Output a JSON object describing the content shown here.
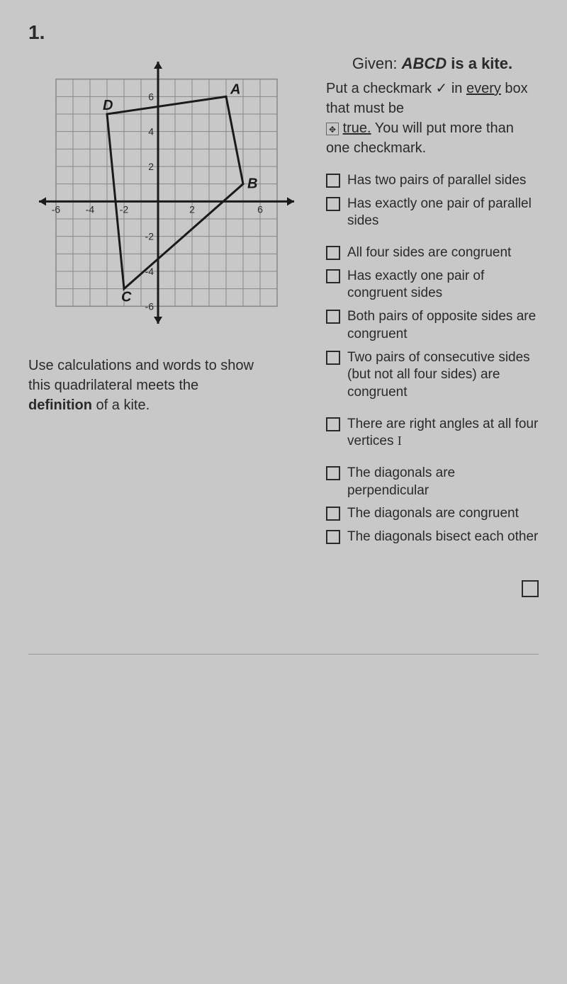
{
  "problem": {
    "number": "1.",
    "given_label": "Given:",
    "given_statement": "ABCD",
    "given_suffix": " is a kite.",
    "instruction_line1_a": "Put a checkmark ✓ in ",
    "instruction_line1_b": "every",
    "instruction_line1_c": " box that must be",
    "instruction_line2_a": "true.",
    "instruction_line2_b": "  You will put more than one checkmark."
  },
  "checkboxes": {
    "group1": [
      "Has two pairs of parallel sides",
      "Has exactly one pair of parallel sides"
    ],
    "group2": [
      "All four sides are congruent",
      "Has exactly one pair of congruent sides",
      "Both pairs of opposite sides are congruent",
      "Two pairs of consecutive sides",
      "(but not all four sides) are congruent"
    ],
    "group3": [
      "There are right angles at all four vertices"
    ],
    "group4": [
      "The diagonals are perpendicular",
      "The diagonals are congruent",
      "The diagonals bisect each other"
    ]
  },
  "graph": {
    "xmin": -7,
    "xmax": 8,
    "ymin": -7,
    "ymax": 8,
    "x_ticks": [
      -6,
      -4,
      -2,
      2,
      6
    ],
    "y_ticks": [
      -6,
      -4,
      -2,
      2,
      4,
      6
    ],
    "grid_color": "#888",
    "axis_color": "#1a1a1a",
    "shape_color": "#1a1a1a",
    "axis_width": 3,
    "shape_width": 3,
    "tick_fontsize": 14,
    "label_fontsize": 20,
    "points": {
      "A": {
        "x": 4,
        "y": 6
      },
      "B": {
        "x": 5,
        "y": 1
      },
      "C": {
        "x": -2,
        "y": -5
      },
      "D": {
        "x": -3,
        "y": 5
      }
    },
    "label_offsets": {
      "A": {
        "dx": 6,
        "dy": -4
      },
      "B": {
        "dx": 6,
        "dy": 6
      },
      "C": {
        "dx": -4,
        "dy": 18
      },
      "D": {
        "dx": -6,
        "dy": -6
      }
    }
  },
  "calc": {
    "line1": "Use calculations and words to show",
    "line2": "this quadrilateral meets the",
    "line3_a": "definition",
    "line3_b": " of a kite."
  }
}
